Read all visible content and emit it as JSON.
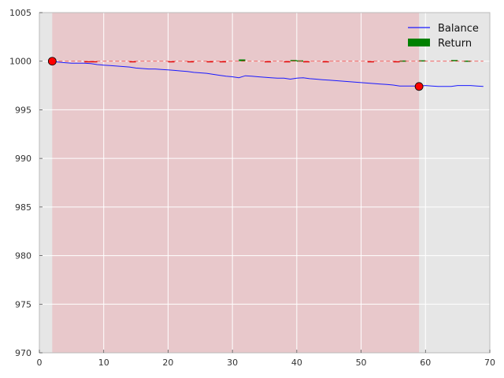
{
  "chart_data": {
    "type": "line",
    "xlim": [
      0,
      70
    ],
    "ylim": [
      970,
      1005
    ],
    "x_ticks": [
      0,
      10,
      20,
      30,
      40,
      50,
      60,
      70
    ],
    "y_ticks": [
      970,
      975,
      980,
      985,
      990,
      995,
      1000,
      1005
    ],
    "x_tick_labels": [
      "0",
      "10",
      "20",
      "30",
      "40",
      "50",
      "60",
      "70"
    ],
    "y_tick_labels": [
      "970",
      "975",
      "980",
      "985",
      "990",
      "995",
      "1000",
      "1005"
    ],
    "grid": true,
    "legend_position": "top-right",
    "shaded_region": {
      "x_start": 2,
      "x_end": 59,
      "color": "#e8c8cb"
    },
    "reference_line": {
      "y": 1000,
      "style": "dashed",
      "color": "#ee3333"
    },
    "series": [
      {
        "name": "Balance",
        "type": "line",
        "color": "#1a1aff",
        "x": [
          2,
          3,
          4,
          5,
          6,
          7,
          8,
          9,
          10,
          11,
          12,
          13,
          14,
          15,
          16,
          17,
          18,
          19,
          20,
          21,
          22,
          23,
          24,
          25,
          26,
          27,
          28,
          29,
          30,
          31,
          32,
          33,
          34,
          35,
          36,
          37,
          38,
          39,
          40,
          41,
          42,
          43,
          44,
          45,
          46,
          47,
          48,
          49,
          50,
          51,
          52,
          53,
          54,
          55,
          56,
          57,
          58,
          59,
          60,
          61,
          62,
          63,
          64,
          65,
          66,
          67,
          68,
          69
        ],
        "y": [
          1000.0,
          999.9,
          999.85,
          999.8,
          999.8,
          999.8,
          999.75,
          999.65,
          999.6,
          999.55,
          999.5,
          999.45,
          999.4,
          999.3,
          999.25,
          999.2,
          999.2,
          999.15,
          999.1,
          999.05,
          999.0,
          998.95,
          998.85,
          998.8,
          998.75,
          998.65,
          998.55,
          998.45,
          998.4,
          998.3,
          998.5,
          998.45,
          998.4,
          998.35,
          998.3,
          998.25,
          998.25,
          998.15,
          998.25,
          998.3,
          998.2,
          998.15,
          998.1,
          998.05,
          998.0,
          997.95,
          997.9,
          997.85,
          997.8,
          997.75,
          997.7,
          997.65,
          997.6,
          997.55,
          997.45,
          997.45,
          997.45,
          997.45,
          997.5,
          997.45,
          997.4,
          997.4,
          997.4,
          997.5,
          997.5,
          997.5,
          997.45,
          997.4
        ]
      },
      {
        "name": "Return",
        "type": "bar",
        "color": "#008000",
        "negative_color": "#dd0000",
        "x": [
          7.5,
          8.5,
          14.5,
          20.5,
          23.5,
          26.5,
          28.5,
          31.5,
          35.5,
          38.5,
          39.5,
          40.5,
          41.5,
          44.5,
          51.5,
          55.5,
          56.5,
          59.5,
          64.5,
          66.5
        ],
        "y": [
          -0.07,
          -0.07,
          -0.06,
          -0.06,
          -0.06,
          -0.06,
          -0.06,
          0.18,
          -0.06,
          -0.06,
          0.12,
          0.08,
          -0.07,
          -0.06,
          -0.06,
          -0.08,
          0.07,
          0.09,
          0.12,
          0.06
        ]
      }
    ],
    "markers": [
      {
        "x": 2,
        "y": 1000.0,
        "color": "#ff0000"
      },
      {
        "x": 59,
        "y": 997.4,
        "color": "#ff0000"
      }
    ]
  }
}
